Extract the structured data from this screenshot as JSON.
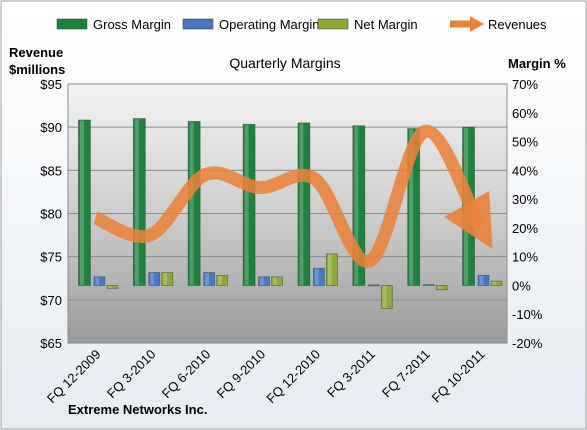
{
  "chart_data": {
    "type": "bar",
    "title": "Quarterly Margins",
    "company": "Extreme Networks Inc.",
    "ylabel_left": [
      "Revenue",
      "$millions"
    ],
    "ylabel_right": "Margin %",
    "categories": [
      "FQ 12-2009",
      "FQ 3-2010",
      "FQ 6-2010",
      "FQ 9-2010",
      "FQ 12-2010",
      "FQ 3-2011",
      "FQ 7-2011",
      "FQ 10-2011"
    ],
    "left_axis": {
      "min": 65,
      "max": 95,
      "step": 5,
      "prefix": "$"
    },
    "right_axis": {
      "min": -20,
      "max": 70,
      "step": 10,
      "suffix": "%"
    },
    "series": [
      {
        "name": "Gross Margin",
        "axis": "right",
        "kind": "bar",
        "color": "#1f8040",
        "values": [
          57.5,
          58,
          57,
          56,
          56.5,
          55.5,
          54.5,
          55
        ]
      },
      {
        "name": "Operating Margin",
        "axis": "right",
        "kind": "bar",
        "color": "#4a76c4",
        "values": [
          3,
          4.5,
          4.5,
          3,
          6,
          0.2,
          0.3,
          3.5
        ]
      },
      {
        "name": "Net Margin",
        "axis": "right",
        "kind": "bar",
        "color": "#8fa83a",
        "values": [
          -1,
          4.5,
          3.5,
          3,
          11,
          -8,
          -1.5,
          1.5
        ]
      },
      {
        "name": "Revenues",
        "axis": "left",
        "kind": "line",
        "color": "#e9823a",
        "values": [
          79.5,
          77.5,
          84.5,
          83,
          84,
          74.5,
          89.5,
          78.5
        ]
      }
    ],
    "legend_position": "top",
    "grid": true
  }
}
